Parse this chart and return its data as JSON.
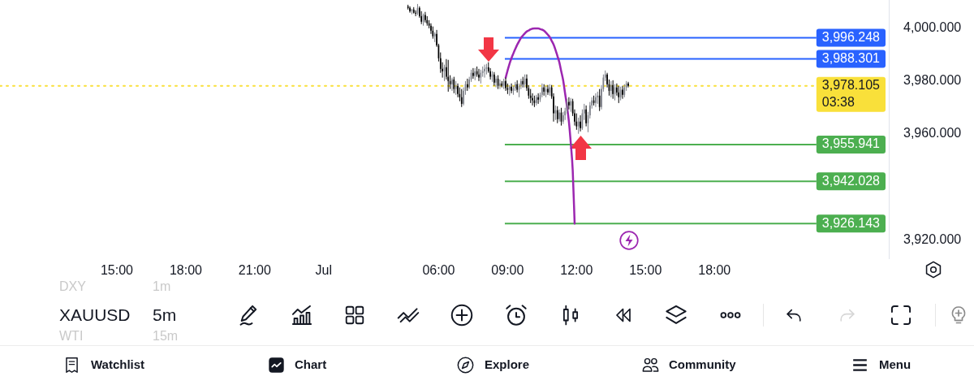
{
  "chart_data": {
    "type": "candlestick",
    "categories": [
      null,
      null,
      null,
      null,
      null,
      null,
      null,
      null,
      null,
      null,
      null,
      null,
      null,
      null,
      null,
      null,
      null,
      null,
      null,
      null,
      null,
      null,
      null,
      null,
      null,
      null,
      null,
      null,
      null,
      null,
      null,
      null,
      null,
      null,
      null,
      null,
      null,
      null,
      null,
      null,
      null,
      null,
      null,
      null,
      null,
      null,
      null,
      null,
      null,
      null,
      null,
      null,
      null,
      null,
      null,
      null,
      null,
      null,
      null,
      null,
      null,
      "15:00",
      null,
      null,
      null,
      null,
      null,
      null,
      null,
      null,
      null,
      null,
      null,
      null,
      null,
      null,
      null,
      null,
      null,
      null,
      null,
      null,
      null,
      null,
      null,
      null,
      null,
      null,
      null,
      null,
      null,
      null,
      null,
      null,
      null,
      null,
      null,
      "18:00",
      null,
      null,
      null,
      null,
      null,
      null,
      null,
      null,
      null,
      null,
      null,
      null,
      null,
      null,
      null,
      null,
      null,
      null,
      null,
      null,
      null,
      null,
      null,
      null,
      null,
      null,
      null,
      null,
      null,
      null,
      null,
      null,
      null,
      null,
      null,
      "21:00",
      null,
      null,
      null,
      null,
      null,
      null,
      null,
      null,
      null,
      null,
      null,
      null,
      null,
      null,
      null,
      null,
      null,
      null,
      null,
      null,
      null,
      null,
      null,
      null,
      null,
      null,
      null,
      null,
      null,
      null,
      null,
      null,
      null,
      null,
      null,
      "Jul",
      null,
      null,
      null,
      null,
      null,
      null,
      null,
      null,
      null,
      null,
      null,
      null,
      null,
      null,
      null,
      null,
      null,
      null,
      null,
      null,
      null,
      null,
      null,
      null,
      null,
      null,
      null,
      null,
      null,
      null,
      null,
      null,
      null,
      null,
      null,
      null,
      null,
      null,
      null,
      null,
      null,
      null,
      null,
      null,
      null,
      null,
      null,
      null,
      null,
      null,
      null,
      null,
      null,
      null,
      null,
      null,
      null,
      null,
      null,
      "06:00",
      null,
      null,
      null,
      null,
      null,
      null,
      null,
      null,
      null,
      null,
      null,
      null,
      null,
      null,
      null,
      null,
      null,
      null,
      null,
      null,
      null,
      null,
      null,
      null,
      null,
      null,
      null,
      null,
      null,
      null,
      null,
      null,
      null,
      null,
      null,
      "09:00",
      null,
      null,
      null,
      null,
      null,
      null,
      null,
      null,
      null,
      null,
      null,
      null,
      null,
      null,
      null,
      null,
      null,
      null,
      null,
      null,
      null,
      null,
      null,
      null,
      null,
      null,
      null,
      null,
      null,
      null,
      null,
      null,
      null,
      null,
      null,
      "12:00",
      null,
      null,
      null,
      null,
      null,
      null,
      null,
      null,
      null,
      null,
      null,
      null,
      null,
      null,
      null,
      null,
      null,
      null,
      null,
      null,
      null,
      null,
      null,
      null,
      null,
      null,
      null,
      null,
      null,
      null,
      null,
      null,
      null,
      null,
      null,
      "15:00",
      null,
      null,
      null,
      null,
      null,
      null,
      null,
      null,
      null,
      null,
      null,
      null,
      null,
      null,
      null,
      null,
      null,
      null,
      null,
      null,
      null,
      null,
      null,
      null,
      null,
      null,
      null,
      null,
      null,
      null,
      null,
      null,
      null,
      null,
      null,
      "18:00",
      null,
      null,
      null,
      null,
      null,
      null,
      null,
      null,
      null,
      null,
      null,
      null,
      null,
      null,
      null,
      null,
      null,
      null,
      null,
      null,
      null,
      null,
      null,
      null,
      null,
      null,
      null,
      null,
      null,
      null,
      null,
      null,
      null,
      null,
      null,
      null,
      null,
      null,
      null,
      null,
      null,
      null,
      null,
      null,
      null,
      null,
      null,
      null,
      null,
      null,
      null,
      null,
      null,
      null,
      null,
      null,
      null,
      null,
      null,
      null,
      null,
      null,
      null,
      null,
      null,
      null,
      null,
      null,
      null,
      null,
      null,
      null,
      null,
      null,
      null,
      null,
      null,
      null,
      null,
      null,
      null,
      null,
      null,
      null,
      null,
      null,
      null,
      null,
      null,
      null,
      null
    ],
    "ohlc": [
      null,
      null,
      null,
      null,
      null,
      null,
      null,
      null,
      null,
      null,
      null,
      null,
      null,
      null,
      null,
      null,
      null,
      null,
      null,
      null,
      null,
      null,
      null,
      null,
      null,
      null,
      null,
      null,
      null,
      null,
      null,
      null,
      null,
      null,
      null,
      null,
      null,
      null,
      null,
      null,
      null,
      null,
      null,
      null,
      null,
      null,
      null,
      null,
      null,
      null,
      null,
      null,
      null,
      null,
      null,
      null,
      null,
      null,
      null,
      null,
      null,
      null,
      null,
      null,
      null,
      null,
      null,
      null,
      null,
      null,
      null,
      null,
      null,
      null,
      null,
      null,
      null,
      null,
      null,
      null,
      null,
      null,
      null,
      null,
      null,
      null,
      null,
      null,
      null,
      null,
      null,
      null,
      null,
      null,
      null,
      null,
      null,
      null,
      null,
      null,
      null,
      null,
      null,
      null,
      null,
      null,
      null,
      null,
      null,
      null,
      null,
      null,
      null,
      null,
      null,
      null,
      null,
      null,
      null,
      null,
      null,
      null,
      null,
      null,
      null,
      null,
      null,
      null,
      null,
      null,
      null,
      null,
      null,
      null,
      null,
      null,
      null,
      null,
      null,
      null,
      null,
      null,
      null,
      null,
      null,
      null,
      null,
      null,
      null,
      null,
      null,
      null,
      null,
      null,
      null,
      null,
      null,
      null,
      null,
      null,
      null,
      null,
      null,
      null,
      null,
      null,
      null,
      null,
      null,
      null,
      null,
      null,
      null,
      null,
      null,
      null,
      null,
      null,
      null,
      null,
      null,
      null,
      null,
      null,
      null,
      null,
      null,
      null,
      null,
      null,
      null,
      null,
      null,
      null,
      null,
      null,
      null,
      null,
      null,
      null,
      null,
      null,
      null,
      null,
      null,
      null,
      null,
      null,
      null,
      null,
      null,
      null,
      null,
      [
        4008.1,
        4008.7,
        4006.9,
        4007.5
      ],
      [
        4007.5,
        4008.1,
        4005.7,
        4006.3
      ],
      [
        4006.3,
        4007.2,
        4005.1,
        4006.9
      ],
      [
        4006.9,
        4007.8,
        4005.4,
        4005.7
      ],
      [
        4005.7,
        4006.6,
        4004.4,
        4005.4
      ],
      [
        4005.4,
        4009.0,
        4004.8,
        4007.5
      ],
      [
        4007.5,
        4008.1,
        4003.8,
        4004.4
      ],
      [
        4004.4,
        4006.3,
        4001.4,
        4002.3
      ],
      [
        4002.3,
        4005.4,
        4000.8,
        4004.8
      ],
      [
        4004.8,
        4006.0,
        4002.0,
        4002.9
      ],
      [
        4002.9,
        4004.4,
        4000.8,
        4001.7
      ],
      [
        4001.7,
        4002.9,
        3999.8,
        4000.8
      ],
      [
        4000.8,
        4001.7,
        3997.7,
        3998.9
      ],
      [
        3998.9,
        4000.5,
        3995.9,
        3996.8
      ],
      [
        3996.8,
        3998.3,
        3994.6,
        3997.7
      ],
      [
        3997.7,
        3999.2,
        3992.8,
        3993.4
      ],
      [
        3993.4,
        3994.0,
        3987.3,
        3988.5
      ],
      [
        3988.5,
        3990.7,
        3983.0,
        3984.5
      ],
      [
        3984.5,
        3987.0,
        3981.2,
        3983.6
      ],
      [
        3983.6,
        3986.1,
        3979.9,
        3985.1
      ],
      [
        3985.1,
        3988.2,
        3980.5,
        3981.5
      ],
      [
        3981.5,
        3987.9,
        3975.9,
        3979.9
      ],
      [
        3979.9,
        3982.1,
        3976.9,
        3978.7
      ],
      [
        3978.7,
        3981.2,
        3976.2,
        3980.5
      ],
      [
        3980.5,
        3981.5,
        3975.3,
        3976.9
      ],
      [
        3976.9,
        3979.9,
        3974.7,
        3978.1
      ],
      [
        3978.1,
        3979.0,
        3973.8,
        3975.0
      ],
      [
        3975.0,
        3977.5,
        3972.3,
        3973.8
      ],
      [
        3973.8,
        3976.9,
        3970.1,
        3971.3
      ],
      [
        3971.3,
        3977.5,
        3970.7,
        3976.2
      ],
      [
        3976.2,
        3979.9,
        3974.7,
        3978.7
      ],
      [
        3978.7,
        3980.8,
        3976.2,
        3977.5
      ],
      [
        3977.5,
        3981.5,
        3976.9,
        3980.5
      ],
      [
        3980.5,
        3984.2,
        3979.6,
        3983.0
      ],
      [
        3983.0,
        3984.8,
        3980.8,
        3981.8
      ],
      [
        3981.8,
        3984.8,
        3980.2,
        3983.6
      ],
      [
        3983.6,
        3985.4,
        3981.5,
        3982.4
      ],
      [
        3982.4,
        3984.5,
        3979.9,
        3981.2
      ],
      [
        3981.2,
        3984.2,
        3979.0,
        3983.0
      ],
      [
        3983.0,
        3985.4,
        3981.5,
        3983.6
      ],
      [
        3983.6,
        3986.1,
        3981.2,
        3984.5
      ],
      [
        3984.5,
        3986.4,
        3982.4,
        3985.1
      ],
      [
        3985.1,
        3987.0,
        3983.0,
        3983.6
      ],
      [
        3983.6,
        3984.8,
        3980.5,
        3981.5
      ],
      [
        3981.5,
        3983.6,
        3979.6,
        3982.4
      ],
      [
        3982.4,
        3983.3,
        3978.1,
        3979.3
      ],
      [
        3979.3,
        3981.8,
        3977.5,
        3980.8
      ],
      [
        3980.8,
        3982.1,
        3976.9,
        3978.1
      ],
      [
        3978.1,
        3980.5,
        3976.9,
        3979.0
      ],
      [
        3979.0,
        3979.9,
        3977.5,
        3978.1
      ],
      [
        3978.1,
        3980.8,
        3976.9,
        3979.9
      ],
      [
        3979.9,
        3981.2,
        3976.2,
        3977.2
      ],
      [
        3977.2,
        3979.0,
        3975.0,
        3976.6
      ],
      [
        3976.6,
        3978.4,
        3974.4,
        3977.8
      ],
      [
        3977.8,
        3979.0,
        3975.3,
        3976.2
      ],
      [
        3976.2,
        3978.1,
        3974.7,
        3977.2
      ],
      [
        3977.2,
        3979.6,
        3976.2,
        3978.7
      ],
      [
        3978.7,
        3980.2,
        3975.6,
        3976.6
      ],
      [
        3976.6,
        3979.0,
        3973.8,
        3978.1
      ],
      [
        3978.1,
        3980.8,
        3976.9,
        3979.9
      ],
      [
        3979.9,
        3981.5,
        3977.5,
        3978.7
      ],
      [
        3978.7,
        3982.4,
        3977.5,
        3980.8
      ],
      [
        3980.8,
        3982.4,
        3976.2,
        3977.2
      ],
      [
        3977.2,
        3978.4,
        3973.2,
        3974.4
      ],
      [
        3974.4,
        3976.9,
        3971.6,
        3973.5
      ],
      [
        3973.5,
        3975.3,
        3970.7,
        3972.6
      ],
      [
        3972.6,
        3974.4,
        3970.1,
        3971.6
      ],
      [
        3971.6,
        3974.7,
        3970.7,
        3973.8
      ],
      [
        3973.8,
        3975.3,
        3971.3,
        3972.9
      ],
      [
        3972.9,
        3975.6,
        3972.0,
        3974.7
      ],
      [
        3974.7,
        3979.0,
        3973.8,
        3977.5
      ],
      [
        3977.5,
        3978.7,
        3974.4,
        3975.9
      ],
      [
        3975.9,
        3978.1,
        3973.8,
        3976.9
      ],
      [
        3976.9,
        3978.4,
        3974.7,
        3975.6
      ],
      [
        3975.6,
        3978.7,
        3974.4,
        3977.5
      ],
      [
        3977.5,
        3978.4,
        3973.2,
        3974.1
      ],
      [
        3974.1,
        3975.3,
        3964.6,
        3967.7
      ],
      [
        3967.7,
        3970.7,
        3965.2,
        3968.9
      ],
      [
        3968.9,
        3970.4,
        3964.0,
        3965.5
      ],
      [
        3965.5,
        3969.2,
        3964.6,
        3968.0
      ],
      [
        3968.0,
        3969.8,
        3963.1,
        3964.6
      ],
      [
        3964.6,
        3968.3,
        3963.7,
        3967.0
      ],
      [
        3967.0,
        3969.8,
        3965.2,
        3968.6
      ],
      [
        3968.6,
        3973.2,
        3967.7,
        3972.0
      ],
      [
        3972.0,
        3973.8,
        3969.2,
        3970.7
      ],
      [
        3970.7,
        3973.5,
        3968.3,
        3972.3
      ],
      [
        3972.3,
        3973.2,
        3966.7,
        3967.7
      ],
      [
        3967.7,
        3969.2,
        3963.1,
        3964.6
      ],
      [
        3964.6,
        3967.7,
        3961.5,
        3962.8
      ],
      [
        3962.8,
        3966.1,
        3960.0,
        3964.6
      ],
      [
        3964.6,
        3967.0,
        3960.9,
        3962.1
      ],
      [
        3962.1,
        3969.2,
        3961.5,
        3967.7
      ],
      [
        3967.7,
        3971.3,
        3965.2,
        3969.2
      ],
      [
        3969.2,
        3970.7,
        3962.8,
        3964.0
      ],
      [
        3964.0,
        3968.3,
        3960.6,
        3967.0
      ],
      [
        3967.0,
        3972.0,
        3965.8,
        3970.7
      ],
      [
        3970.7,
        3973.8,
        3969.5,
        3972.6
      ],
      [
        3972.6,
        3974.4,
        3970.7,
        3971.6
      ],
      [
        3971.6,
        3975.3,
        3970.1,
        3973.8
      ],
      [
        3973.8,
        3975.9,
        3971.3,
        3974.4
      ],
      [
        3974.4,
        3976.9,
        3968.6,
        3970.1
      ],
      [
        3970.1,
        3978.4,
        3969.2,
        3976.9
      ],
      [
        3976.9,
        3982.4,
        3975.9,
        3981.2
      ],
      [
        3981.2,
        3983.9,
        3979.9,
        3982.4
      ],
      [
        3982.4,
        3983.0,
        3977.5,
        3978.7
      ],
      [
        3978.7,
        3980.5,
        3974.4,
        3976.2
      ],
      [
        3976.2,
        3979.9,
        3973.8,
        3978.4
      ],
      [
        3978.4,
        3980.2,
        3973.2,
        3975.0
      ],
      [
        3975.0,
        3978.7,
        3972.6,
        3977.5
      ],
      [
        3977.5,
        3979.0,
        3974.4,
        3975.6
      ],
      [
        3975.6,
        3978.1,
        3971.6,
        3973.8
      ],
      [
        3973.8,
        3977.8,
        3972.6,
        3976.6
      ],
      [
        3976.6,
        3978.1,
        3973.2,
        3974.7
      ],
      [
        3974.7,
        3978.7,
        3973.8,
        3977.5
      ],
      [
        3977.5,
        3979.9,
        3976.2,
        3979.0
      ],
      [
        3979.0,
        3979.6,
        3977.5,
        3978.105
      ],
      null,
      null,
      null,
      null,
      null,
      null,
      null,
      null,
      null,
      null,
      null,
      null,
      null,
      null,
      null,
      null,
      null,
      null,
      null,
      null,
      null,
      null,
      null,
      null,
      null,
      null,
      null,
      null,
      null,
      null,
      null,
      null,
      null,
      null,
      null,
      null,
      null,
      null,
      null,
      null,
      null,
      null,
      null,
      null,
      null,
      null,
      null,
      null,
      null,
      null,
      null,
      null,
      null,
      null,
      null,
      null,
      null,
      null,
      null,
      null,
      null,
      null,
      null,
      null,
      null,
      null,
      null,
      null,
      null,
      null,
      null,
      null,
      null,
      null,
      null,
      null,
      null,
      null,
      null,
      null,
      null,
      null,
      null,
      null,
      null,
      null,
      null,
      null,
      null,
      null,
      null,
      null,
      null,
      null,
      null,
      null,
      null,
      null,
      null,
      null,
      null,
      null,
      null,
      null,
      null,
      null,
      null,
      null,
      null,
      null,
      null,
      null,
      null,
      null,
      null,
      null,
      null,
      null,
      null,
      null,
      null,
      null,
      null,
      null,
      null,
      null,
      null,
      null,
      null,
      null,
      null,
      null,
      null,
      null,
      null,
      null
    ],
    "colors": [
      null,
      null,
      null,
      null,
      null,
      null,
      null,
      null,
      null,
      null,
      null,
      null,
      null,
      null,
      null,
      null,
      null,
      null,
      null,
      null,
      null,
      null,
      null,
      null,
      null,
      null,
      null,
      null,
      null,
      null,
      null,
      null,
      null,
      null,
      null,
      null,
      null,
      null,
      null,
      null,
      null,
      null,
      null,
      null,
      null,
      null,
      null,
      null,
      null,
      null,
      null,
      null,
      null,
      null,
      null,
      null,
      null,
      null,
      null,
      null,
      null,
      null,
      null,
      null,
      null,
      null,
      null,
      null,
      null,
      null,
      null,
      null,
      null,
      null,
      null,
      null,
      null,
      null,
      null,
      null,
      null,
      null,
      null,
      null,
      null,
      null,
      null,
      null,
      null,
      null,
      null,
      null,
      null,
      null,
      null,
      null,
      null,
      null,
      null,
      null,
      null,
      null,
      null,
      null,
      null,
      null,
      null,
      null,
      null,
      null,
      null,
      null,
      null,
      null,
      null,
      null,
      null,
      null,
      null,
      null,
      null,
      null,
      null,
      null,
      null,
      null,
      null,
      null,
      null,
      null,
      null,
      null,
      null,
      null,
      null,
      null,
      null,
      null,
      null,
      null,
      null,
      null,
      null,
      null,
      null,
      null,
      null,
      null,
      null,
      null,
      null,
      null,
      null,
      null,
      null,
      null,
      null,
      null,
      null,
      null,
      null,
      null,
      null,
      null,
      null,
      null,
      null,
      null,
      null,
      null,
      null,
      null,
      null,
      null,
      null,
      null,
      null,
      null,
      null,
      null,
      null,
      null,
      null,
      null,
      null,
      null,
      null,
      null,
      null,
      null,
      null,
      null,
      null,
      null,
      null,
      null,
      null,
      null,
      null,
      null,
      null,
      null,
      null,
      null,
      null,
      null,
      null,
      null,
      null,
      null,
      null,
      null,
      null,
      "#000000",
      "#000000",
      "#7b7e87",
      "#000000",
      "#000000",
      "#7b7e87",
      "#000000",
      "#000000",
      "#7b7e87",
      "#000000",
      "#000000",
      "#000000",
      "#000000",
      "#000000",
      "#7b7e87",
      "#000000",
      "#000000",
      "#000000",
      "#000000",
      "#7b7e87",
      "#000000",
      "#000000",
      "#000000",
      "#7b7e87",
      "#000000",
      "#7b7e87",
      "#000000",
      "#000000",
      "#000000",
      "#7b7e87",
      "#7b7e87",
      "#000000",
      "#7b7e87",
      "#7b7e87",
      "#000000",
      "#7b7e87",
      "#000000",
      "#000000",
      "#7b7e87",
      "#7b7e87",
      "#7b7e87",
      "#7b7e87",
      "#000000",
      "#000000",
      "#7b7e87",
      "#000000",
      "#7b7e87",
      "#000000",
      "#7b7e87",
      "#000000",
      "#7b7e87",
      "#000000",
      "#000000",
      "#7b7e87",
      "#000000",
      "#7b7e87",
      "#7b7e87",
      "#000000",
      "#7b7e87",
      "#7b7e87",
      "#000000",
      "#7b7e87",
      "#000000",
      "#000000",
      "#000000",
      "#000000",
      "#000000",
      "#7b7e87",
      "#000000",
      "#7b7e87",
      "#7b7e87",
      "#000000",
      "#7b7e87",
      "#000000",
      "#7b7e87",
      "#000000",
      "#000000",
      "#7b7e87",
      "#000000",
      "#7b7e87",
      "#000000",
      "#7b7e87",
      "#7b7e87",
      "#7b7e87",
      "#000000",
      "#7b7e87",
      "#000000",
      "#000000",
      "#000000",
      "#7b7e87",
      "#000000",
      "#7b7e87",
      "#7b7e87",
      "#000000",
      "#7b7e87",
      "#7b7e87",
      "#7b7e87",
      "#000000",
      "#7b7e87",
      "#7b7e87",
      "#000000",
      "#7b7e87",
      "#7b7e87",
      "#7b7e87",
      "#000000",
      "#000000",
      "#7b7e87",
      "#000000",
      "#7b7e87",
      "#000000",
      "#000000",
      "#7b7e87",
      "#000000",
      "#7b7e87",
      "#7b7e87",
      "#000000",
      null,
      null,
      null,
      null,
      null,
      null,
      null,
      null,
      null,
      null,
      null,
      null,
      null,
      null,
      null,
      null,
      null,
      null,
      null,
      null,
      null,
      null,
      null,
      null,
      null,
      null,
      null,
      null,
      null,
      null,
      null,
      null,
      null,
      null,
      null,
      null,
      null,
      null,
      null,
      null,
      null,
      null,
      null,
      null,
      null,
      null,
      null,
      null,
      null,
      null,
      null,
      null,
      null,
      null,
      null,
      null,
      null,
      null,
      null,
      null,
      null,
      null,
      null,
      null,
      null,
      null,
      null,
      null,
      null,
      null,
      null,
      null,
      null,
      null,
      null,
      null,
      null,
      null,
      null,
      null,
      null,
      null,
      null,
      null,
      null,
      null,
      null,
      null,
      null,
      null,
      null,
      null,
      null,
      null,
      null,
      null,
      null,
      null,
      null,
      null,
      null,
      null,
      null,
      null,
      null,
      null,
      null,
      null,
      null,
      null,
      null,
      null,
      null,
      null,
      null,
      null,
      null,
      null,
      null,
      null,
      null,
      null,
      null,
      null,
      null,
      null,
      null,
      null,
      null,
      null,
      null,
      null,
      null,
      null,
      null,
      null
    ],
    "series": [
      {
        "type": "line",
        "color": "#9c27b0",
        "values": [
          null,
          null,
          null,
          null,
          null,
          null,
          null,
          null,
          null,
          null,
          null,
          null,
          null,
          null,
          null,
          null,
          null,
          null,
          null,
          null,
          null,
          null,
          null,
          null,
          null,
          null,
          null,
          null,
          null,
          null,
          null,
          null,
          null,
          null,
          null,
          null,
          null,
          null,
          null,
          null,
          null,
          null,
          null,
          null,
          null,
          null,
          null,
          null,
          null,
          null,
          null,
          null,
          null,
          null,
          null,
          null,
          null,
          null,
          null,
          null,
          null,
          null,
          null,
          null,
          null,
          null,
          null,
          null,
          null,
          null,
          null,
          null,
          null,
          null,
          null,
          null,
          null,
          null,
          null,
          null,
          null,
          null,
          null,
          null,
          null,
          null,
          null,
          null,
          null,
          null,
          null,
          null,
          null,
          null,
          null,
          null,
          null,
          null,
          null,
          null,
          null,
          null,
          null,
          null,
          null,
          null,
          null,
          null,
          null,
          null,
          null,
          null,
          null,
          null,
          null,
          null,
          null,
          null,
          null,
          null,
          null,
          null,
          null,
          null,
          null,
          null,
          null,
          null,
          null,
          null,
          null,
          null,
          null,
          null,
          null,
          null,
          null,
          null,
          null,
          null,
          null,
          null,
          null,
          null,
          null,
          null,
          null,
          null,
          null,
          null,
          null,
          null,
          null,
          null,
          null,
          null,
          null,
          null,
          null,
          null,
          null,
          null,
          null,
          null,
          null,
          null,
          null,
          null,
          null,
          null,
          null,
          null,
          null,
          null,
          null,
          null,
          null,
          null,
          null,
          null,
          null,
          null,
          null,
          null,
          null,
          null,
          null,
          null,
          null,
          null,
          null,
          null,
          null,
          null,
          null,
          null,
          null,
          null,
          null,
          null,
          null,
          null,
          null,
          null,
          null,
          null,
          null,
          null,
          null,
          null,
          null,
          null,
          null,
          null,
          null,
          null,
          null,
          null,
          null,
          null,
          null,
          null,
          null,
          null,
          null,
          null,
          null,
          null,
          null,
          null,
          null,
          null,
          null,
          null,
          null,
          null,
          null,
          null,
          null,
          null,
          null,
          null,
          null,
          null,
          null,
          null,
          null,
          null,
          null,
          null,
          null,
          null,
          null,
          null,
          null,
          null,
          null,
          null,
          null,
          null,
          null,
          null,
          null,
          null,
          3981.2,
          3983.9,
          3986.4,
          3988.5,
          3990.3,
          3992.0,
          3993.6,
          3994.9,
          3996.2,
          3997.1,
          3997.9,
          3998.6,
          3999.0,
          3999.4,
          3999.7,
          3999.8,
          3999.8,
          3999.8,
          3999.5,
          3999.3,
          3998.9,
          3998.2,
          3997.4,
          3996.5,
          3995.1,
          3993.7,
          3991.7,
          3989.4,
          3987.0,
          3983.6,
          3980.2,
          3975.3,
          3970.4,
          3964.6,
          3956.3,
          3946.2,
          3926.1,
          null,
          null,
          null,
          null,
          null,
          null,
          null,
          null,
          null,
          null,
          null,
          null,
          null,
          null,
          null,
          null,
          null,
          null,
          null,
          null,
          null,
          null,
          null,
          null,
          null,
          null,
          null,
          null,
          null,
          null,
          null,
          null,
          null,
          null,
          null,
          null,
          null,
          null,
          null,
          null,
          null,
          null,
          null,
          null,
          null,
          null,
          null,
          null,
          null,
          null,
          null,
          null,
          null,
          null,
          null,
          null,
          null,
          null,
          null,
          null,
          null,
          null,
          null,
          null,
          null,
          null,
          null,
          null,
          null,
          null,
          null,
          null,
          null,
          null,
          null,
          null,
          null,
          null,
          null,
          null,
          null,
          null,
          null,
          null,
          null,
          null,
          null,
          null,
          null,
          null,
          null,
          null,
          null,
          null,
          null,
          null,
          null,
          null,
          null,
          null,
          null,
          null,
          null,
          null,
          null,
          null,
          null,
          null,
          null,
          null,
          null,
          null,
          null,
          null,
          null,
          null,
          null,
          null,
          null,
          null,
          null,
          null,
          null,
          null,
          null,
          null,
          null,
          null,
          null,
          null,
          null,
          null,
          null,
          null,
          null,
          null,
          null,
          null,
          null,
          null,
          null,
          null,
          null,
          null,
          null,
          null,
          null,
          null,
          null,
          null,
          null,
          null,
          null,
          null,
          null,
          null,
          null,
          null,
          null,
          null,
          null,
          null,
          null,
          null
        ]
      }
    ],
    "ylim": [
      3913,
      4010.5
    ],
    "yticks": [
      {
        "value": 3920,
        "label": "3,920.000"
      },
      {
        "value": 3960,
        "label": "3,960.000"
      },
      {
        "value": 3980,
        "label": "3,980.000"
      },
      {
        "value": 4000,
        "label": "4,000.000"
      }
    ],
    "ref_lines": [
      {
        "axis": "y",
        "value": 3996.248,
        "label": "3,996.248",
        "color": "#2962ff"
      },
      {
        "axis": "y",
        "value": 3988.301,
        "label": "3,988.301",
        "color": "#2962ff"
      },
      {
        "axis": "y",
        "value": 3978.105,
        "label": "3,978.105",
        "color": "#f9e03a",
        "line_style": "dotted"
      },
      {
        "axis": "y",
        "value": 3955.941,
        "label": "3,955.941",
        "color": "#4caf50"
      },
      {
        "axis": "y",
        "value": 3942.028,
        "label": "3,942.028",
        "color": "#4caf50"
      },
      {
        "axis": "y",
        "value": 3926.143,
        "label": "3,926.143",
        "color": "#4caf50"
      }
    ],
    "annotations": [
      "03:38",
      "DXY",
      "1m",
      "XAUUSD",
      "5m",
      "WTI",
      "15m",
      "Watchlist",
      "Chart",
      "Explore",
      "Community",
      "Menu"
    ]
  }
}
